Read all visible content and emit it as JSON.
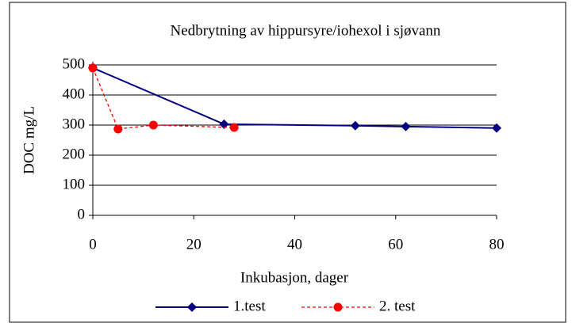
{
  "chart_data": {
    "type": "line",
    "title": "Nedbrytning av  hippursyre/iohexol i sjøvann",
    "xlabel": "Inkubasjon, dager",
    "ylabel": "DOC mg/L",
    "series": [
      {
        "name": "1.test",
        "color": "#000080",
        "marker": "diamond",
        "dash": false,
        "x": [
          0,
          26,
          52,
          62,
          80
        ],
        "values": [
          490,
          303,
          298,
          295,
          290
        ]
      },
      {
        "name": "2. test",
        "color": "#ff0000",
        "marker": "circle",
        "dash": true,
        "x": [
          0,
          5,
          12,
          28
        ],
        "values": [
          490,
          287,
          300,
          292
        ]
      }
    ],
    "xlim": [
      0,
      80
    ],
    "xticks": [
      0,
      20,
      40,
      60,
      80
    ],
    "ylim": [
      0,
      500
    ],
    "yticks": [
      0,
      100,
      200,
      300,
      400,
      500
    ],
    "grid": true,
    "legend": "bottom"
  }
}
